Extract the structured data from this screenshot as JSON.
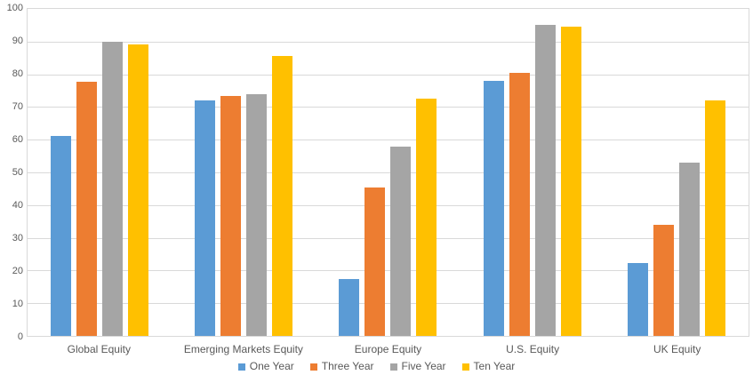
{
  "chart_data": {
    "type": "bar",
    "categories": [
      "Global Equity",
      "Emerging Markets Equity",
      "Europe Equity",
      "U.S. Equity",
      "UK Equity"
    ],
    "series": [
      {
        "name": "One Year",
        "color": "#5B9BD5",
        "values": [
          61.2,
          71.9,
          17.3,
          78.1,
          22.4
        ]
      },
      {
        "name": "Three Year",
        "color": "#ED7D31",
        "values": [
          77.8,
          73.3,
          45.3,
          80.4,
          33.9
        ]
      },
      {
        "name": "Five Year",
        "color": "#A5A5A5",
        "values": [
          90.0,
          73.8,
          58.0,
          95.1,
          53.1
        ]
      },
      {
        "name": "Ten Year",
        "color": "#FFC000",
        "values": [
          89.2,
          85.5,
          72.6,
          94.6,
          72.0
        ]
      }
    ],
    "ylim": [
      0,
      100
    ],
    "ytick_interval": 10,
    "ytick_labels": [
      "100",
      "90",
      "80",
      "70",
      "60",
      "50",
      "40",
      "30",
      "20",
      "10",
      "0"
    ],
    "grid": true,
    "legend_position": "bottom"
  },
  "colors": {
    "gridline": "#D9D9D9",
    "plot_border": "#D9D9D9",
    "axis_text": "#595959",
    "background": "#FFFFFF"
  }
}
